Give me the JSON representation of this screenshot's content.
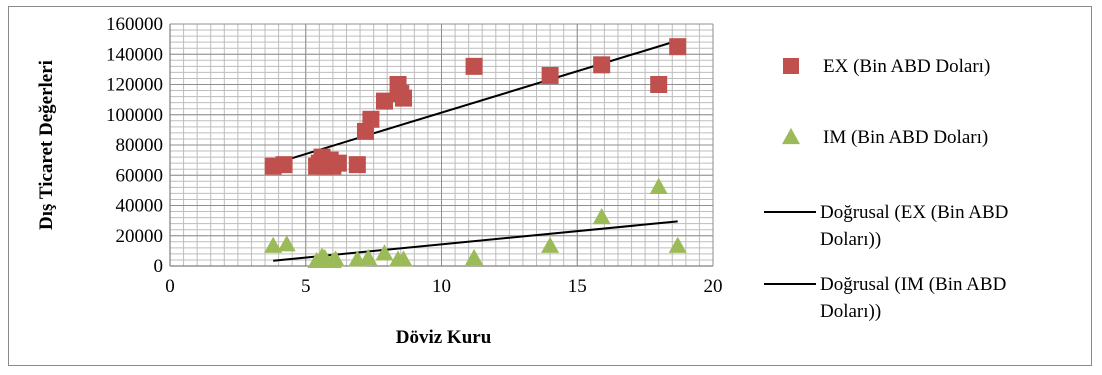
{
  "chart_data": {
    "type": "scatter",
    "xlabel": "Döviz Kuru",
    "ylabel": "Dış Ticaret Değerleri",
    "xlim": [
      0,
      20
    ],
    "ylim": [
      0,
      160000
    ],
    "x_ticks": [
      0,
      5,
      10,
      15,
      20
    ],
    "y_ticks": [
      0,
      20000,
      40000,
      60000,
      80000,
      100000,
      120000,
      140000,
      160000
    ],
    "grid": true,
    "legend_position": "right",
    "series": [
      {
        "name": "EX (Bin ABD Doları)",
        "marker": "square",
        "color": "#c0504d",
        "points": [
          [
            3.8,
            66000
          ],
          [
            4.2,
            67000
          ],
          [
            5.4,
            66000
          ],
          [
            5.5,
            68000
          ],
          [
            5.6,
            72000
          ],
          [
            5.7,
            66000
          ],
          [
            5.8,
            67000
          ],
          [
            5.9,
            70000
          ],
          [
            6.0,
            66000
          ],
          [
            6.2,
            68000
          ],
          [
            6.9,
            67000
          ],
          [
            7.2,
            89000
          ],
          [
            7.4,
            97000
          ],
          [
            7.9,
            109000
          ],
          [
            8.4,
            120000
          ],
          [
            8.5,
            114000
          ],
          [
            8.6,
            111000
          ],
          [
            11.2,
            132000
          ],
          [
            14.0,
            126000
          ],
          [
            15.9,
            133000
          ],
          [
            18.0,
            120000
          ],
          [
            18.7,
            145000
          ]
        ]
      },
      {
        "name": "IM (Bin ABD Doları)",
        "marker": "triangle",
        "color": "#9bbb59",
        "points": [
          [
            3.8,
            14000
          ],
          [
            4.3,
            15000
          ],
          [
            5.4,
            4000
          ],
          [
            5.6,
            7000
          ],
          [
            5.7,
            6000
          ],
          [
            6.0,
            4000
          ],
          [
            6.1,
            5000
          ],
          [
            6.9,
            5000
          ],
          [
            7.3,
            6000
          ],
          [
            7.9,
            9000
          ],
          [
            8.4,
            5000
          ],
          [
            8.6,
            5000
          ],
          [
            11.2,
            6000
          ],
          [
            14.0,
            14000
          ],
          [
            15.9,
            33000
          ],
          [
            18.0,
            53000
          ],
          [
            18.7,
            14000
          ]
        ]
      }
    ],
    "trendlines": [
      {
        "name": "Doğrusal (EX (Bin ABD Doları))",
        "color": "#000000",
        "x": [
          3.8,
          18.7
        ],
        "y": [
          67500,
          149000
        ]
      },
      {
        "name": "Doğrusal (IM (Bin ABD Doları))",
        "color": "#000000",
        "x": [
          3.8,
          18.7
        ],
        "y": [
          3500,
          29500
        ]
      }
    ],
    "legend": [
      {
        "label": "EX (Bin ABD Doları)",
        "kind": "square",
        "color": "#c0504d"
      },
      {
        "label": "IM (Bin ABD Doları)",
        "kind": "triangle",
        "color": "#9bbb59"
      },
      {
        "label_lines": [
          "Doğrusal (EX (Bin ABD",
          "Doları))"
        ],
        "kind": "line",
        "color": "#000000"
      },
      {
        "label_lines": [
          "Doğrusal (IM (Bin ABD",
          "Doları))"
        ],
        "kind": "line",
        "color": "#000000"
      }
    ]
  }
}
